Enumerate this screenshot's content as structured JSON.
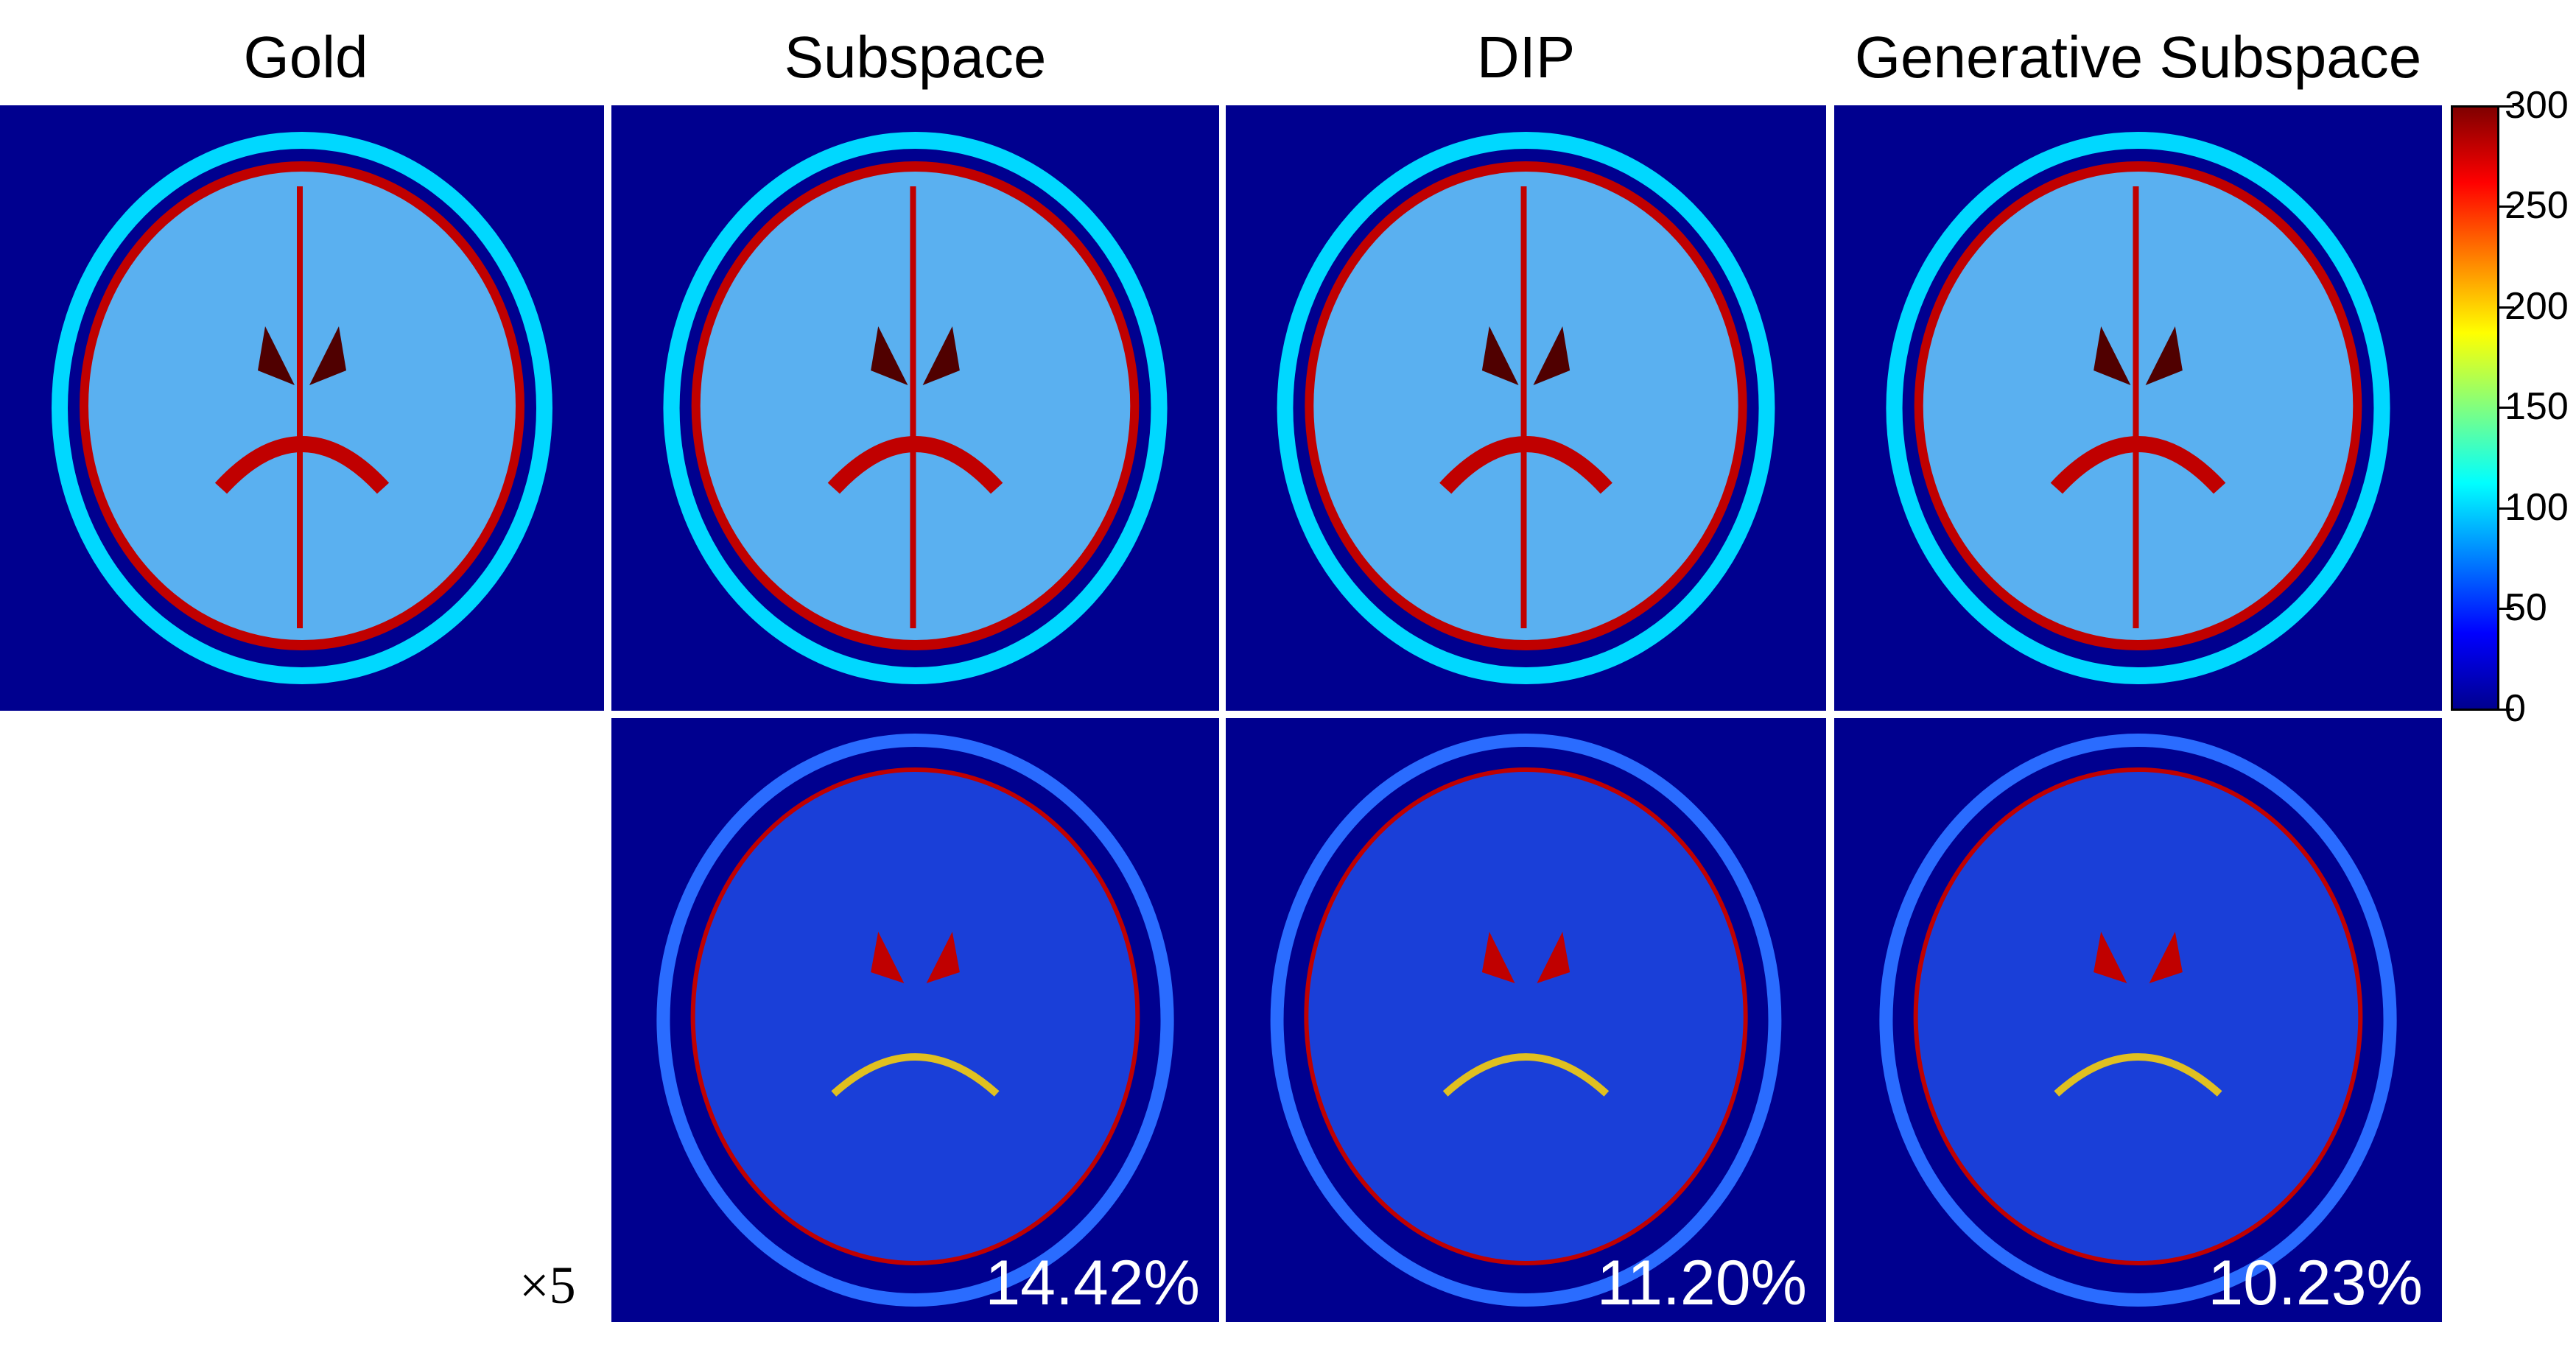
{
  "columns": [
    {
      "title": "Gold"
    },
    {
      "title": "Subspace",
      "error": "14.42%"
    },
    {
      "title": "DIP",
      "error": "11.20%"
    },
    {
      "title": "Generative Subspace",
      "error": "10.23%"
    }
  ],
  "error_scale_label": "×5",
  "colorbar": {
    "ticks": [
      "300",
      "250",
      "200",
      "150",
      "100",
      "50",
      "0"
    ],
    "colormap": "jet",
    "range": [
      0,
      300
    ]
  },
  "colors": {
    "background": "#00008f",
    "skull": "#00d8ff",
    "tissue": "#5ab0f0",
    "csf": "#c00000",
    "ventricle": "#500000"
  }
}
